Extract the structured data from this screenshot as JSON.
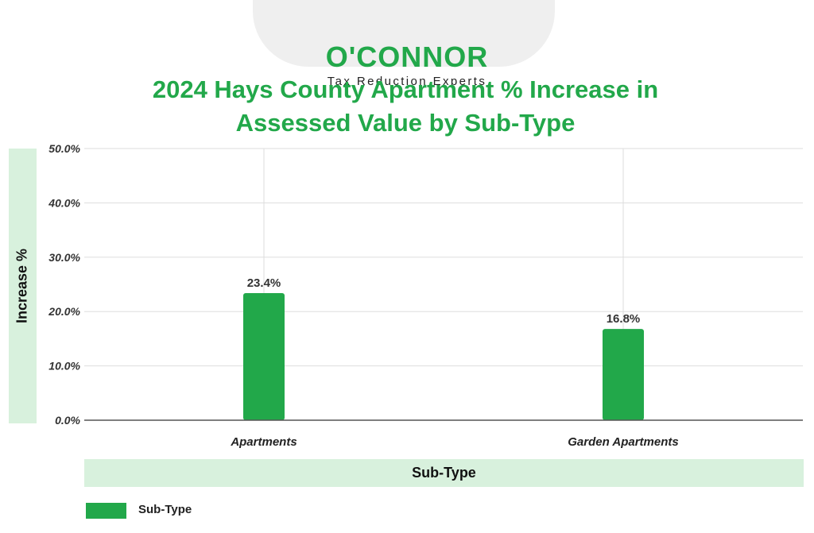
{
  "logo": {
    "name": "O'CONNOR",
    "tagline": "Tax Reduction Experts"
  },
  "title_line1": "2024 Hays County Apartment % Increase in",
  "title_line2": "Assessed Value by Sub-Type",
  "colors": {
    "bar": "#22a84a",
    "band": "#d8f1dd",
    "title": "#22a84a",
    "grid": "#dddddd",
    "axis": "#555555"
  },
  "chart_data": {
    "type": "bar",
    "title": "2024 Hays County Apartment % Increase in Assessed Value by Sub-Type",
    "xlabel": "Sub-Type",
    "ylabel": "Increase %",
    "categories": [
      "Apartments",
      "Garden Apartments"
    ],
    "series": [
      {
        "name": "Sub-Type",
        "values": [
          23.4,
          16.8
        ]
      }
    ],
    "data_labels": [
      "23.4%",
      "16.8%"
    ],
    "ylim": [
      0,
      50
    ],
    "yticks": [
      "0.0%",
      "10.0%",
      "20.0%",
      "30.0%",
      "40.0%",
      "50.0%"
    ],
    "grid": true,
    "legend": {
      "position": "bottom-left",
      "entries": [
        "Sub-Type"
      ]
    }
  }
}
